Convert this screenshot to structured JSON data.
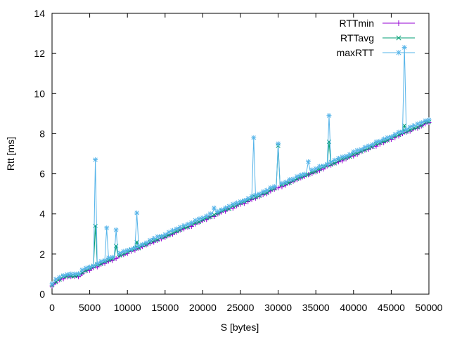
{
  "chart_data": {
    "type": "line",
    "title": "",
    "xlabel": "S [bytes]",
    "ylabel": "Rtt [ms]",
    "xlim": [
      0,
      50000
    ],
    "ylim": [
      0,
      14
    ],
    "xticks": [
      0,
      5000,
      10000,
      15000,
      20000,
      25000,
      30000,
      35000,
      40000,
      45000,
      50000
    ],
    "yticks": [
      0,
      2,
      4,
      6,
      8,
      10,
      12,
      14
    ],
    "grid": false,
    "legend_position": "top-right",
    "x_step": 250,
    "series": [
      {
        "name": "RTTmin",
        "color": "#9400d3",
        "marker": "plus",
        "trend": {
          "start": 0.4,
          "slope_per_byte": 0.000163
        },
        "spikes": []
      },
      {
        "name": "RTTavg",
        "color": "#009e73",
        "marker": "x",
        "trend": {
          "start": 0.45,
          "slope_per_byte": 0.000163
        },
        "spikes": [
          {
            "x": 5700,
            "y": 3.4
          },
          {
            "x": 8500,
            "y": 2.4
          },
          {
            "x": 11300,
            "y": 2.6
          },
          {
            "x": 26700,
            "y": 4.9
          },
          {
            "x": 30000,
            "y": 7.8
          },
          {
            "x": 30050,
            "y": 7.4
          },
          {
            "x": 36800,
            "y": 7.6
          },
          {
            "x": 46700,
            "y": 8.4
          }
        ]
      },
      {
        "name": "maxRTT",
        "color": "#56b4e9",
        "marker": "star",
        "trend": {
          "start": 0.55,
          "slope_per_byte": 0.000163
        },
        "spikes": [
          {
            "x": 5700,
            "y": 6.7
          },
          {
            "x": 7200,
            "y": 3.3
          },
          {
            "x": 8500,
            "y": 3.2
          },
          {
            "x": 11300,
            "y": 4.05
          },
          {
            "x": 21600,
            "y": 4.3
          },
          {
            "x": 26700,
            "y": 7.8
          },
          {
            "x": 30000,
            "y": 7.5
          },
          {
            "x": 34000,
            "y": 6.6
          },
          {
            "x": 36800,
            "y": 8.9
          },
          {
            "x": 46700,
            "y": 12.3
          }
        ]
      }
    ]
  }
}
